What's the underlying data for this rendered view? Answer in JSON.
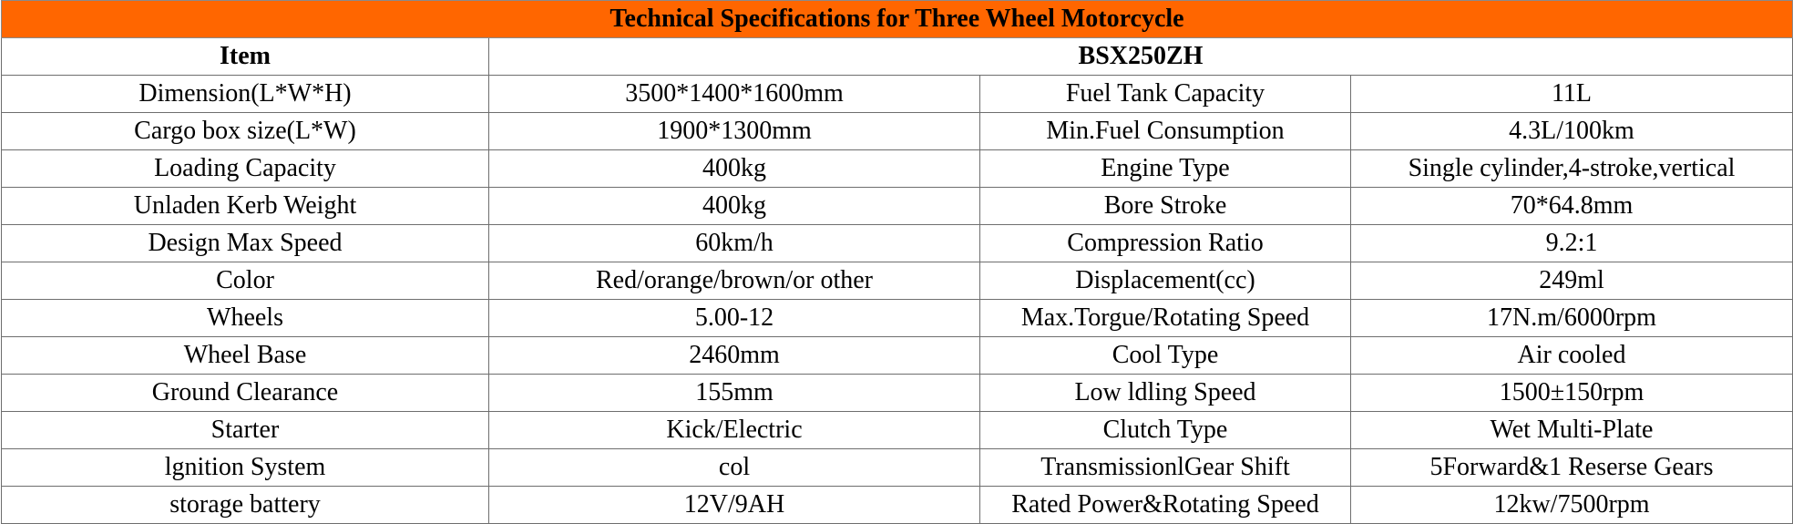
{
  "title": "Technical Specifications for Three Wheel Motorcycle",
  "header": {
    "item_label": "Item",
    "model": "BSX250ZH"
  },
  "colors": {
    "title_background": "#ff6600",
    "border": "#6e6e6e"
  },
  "rows": [
    {
      "label1": "Dimension(L*W*H)",
      "value1": "3500*1400*1600mm",
      "label2": "Fuel Tank Capacity",
      "value2": "11L"
    },
    {
      "label1": "Cargo box size(L*W)",
      "value1": "1900*1300mm",
      "label2": "Min.Fuel Consumption",
      "value2": "4.3L/100km"
    },
    {
      "label1": "Loading Capacity",
      "value1": "400kg",
      "label2": "Engine Type",
      "value2": "Single cylinder,4-stroke,vertical"
    },
    {
      "label1": "Unladen Kerb Weight",
      "value1": "400kg",
      "label2": "Bore Stroke",
      "value2": "70*64.8mm"
    },
    {
      "label1": "Design Max Speed",
      "value1": "60km/h",
      "label2": "Compression Ratio",
      "value2": "9.2:1"
    },
    {
      "label1": "Color",
      "value1": "Red/orange/brown/or other",
      "label2": "Displacement(cc)",
      "value2": "249ml"
    },
    {
      "label1": "Wheels",
      "value1": "5.00-12",
      "label2": "Max.Torgue/Rotating Speed",
      "value2": "17N.m/6000rpm"
    },
    {
      "label1": "Wheel Base",
      "value1": "2460mm",
      "label2": "Cool Type",
      "value2": "Air cooled"
    },
    {
      "label1": "Ground Clearance",
      "value1": "155mm",
      "label2": "Low ldling Speed",
      "value2": "1500±150rpm"
    },
    {
      "label1": "Starter",
      "value1": "Kick/Electric",
      "label2": "Clutch Type",
      "value2": "Wet Multi-Plate"
    },
    {
      "label1": "lgnition System",
      "value1": "col",
      "label2": "TransmissionlGear Shift",
      "value2": "5Forward&1 Reserse Gears"
    },
    {
      "label1": "storage battery",
      "value1": "12V/9AH",
      "label2": "Rated Power&Rotating Speed",
      "value2": "12kw/7500rpm"
    }
  ]
}
